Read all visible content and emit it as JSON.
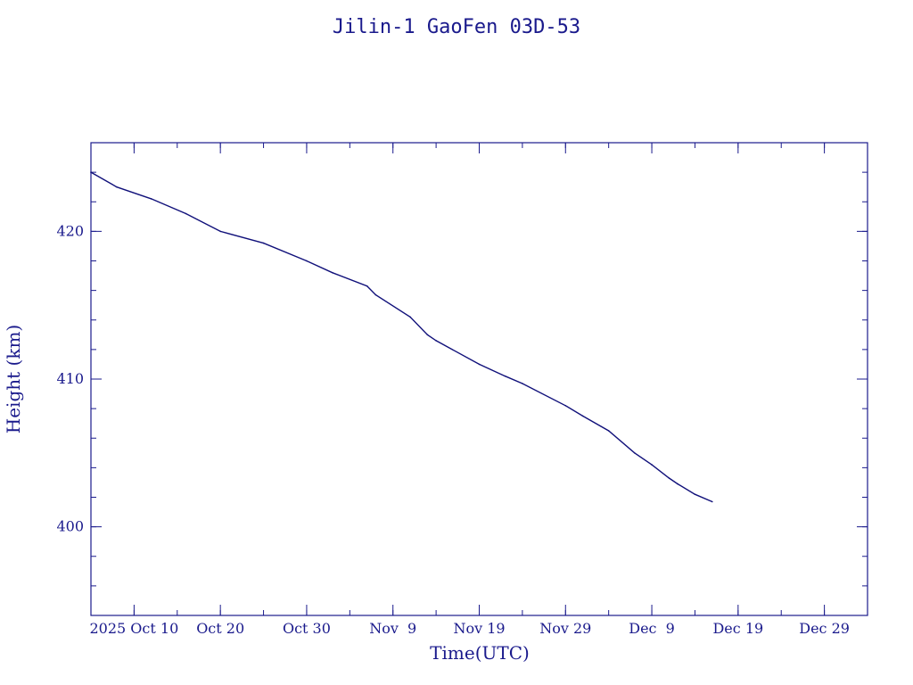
{
  "chart_data": {
    "type": "line",
    "title": "Jilin-1 GaoFen 03D-53",
    "xlabel": "Time(UTC)",
    "ylabel": "Height (km)",
    "xlim": [
      "2025-10-05",
      "2026-01-03"
    ],
    "ylim": [
      394,
      426
    ],
    "x_ticks": [
      {
        "date": "2025-10-10",
        "label": "2025 Oct 10"
      },
      {
        "date": "2025-10-20",
        "label": "Oct 20"
      },
      {
        "date": "2025-10-30",
        "label": "Oct 30"
      },
      {
        "date": "2025-11-09",
        "label": "Nov  9"
      },
      {
        "date": "2025-11-19",
        "label": "Nov 19"
      },
      {
        "date": "2025-11-29",
        "label": "Nov 29"
      },
      {
        "date": "2025-12-09",
        "label": "Dec  9"
      },
      {
        "date": "2025-12-19",
        "label": "Dec 19"
      },
      {
        "date": "2025-12-29",
        "label": "Dec 29"
      }
    ],
    "x_minor_tick_step_days": 5,
    "y_ticks": [
      400,
      410,
      420
    ],
    "y_minor_tick_step": 2,
    "grid": false,
    "series": [
      {
        "color": "#10107a",
        "points": [
          {
            "x": "2025-10-05",
            "y": 424.0
          },
          {
            "x": "2025-10-08",
            "y": 423.0
          },
          {
            "x": "2025-10-12",
            "y": 422.2
          },
          {
            "x": "2025-10-16",
            "y": 421.2
          },
          {
            "x": "2025-10-20",
            "y": 420.0
          },
          {
            "x": "2025-10-25",
            "y": 419.2
          },
          {
            "x": "2025-10-30",
            "y": 418.0
          },
          {
            "x": "2025-11-02",
            "y": 417.2
          },
          {
            "x": "2025-11-06",
            "y": 416.3
          },
          {
            "x": "2025-11-07",
            "y": 415.7
          },
          {
            "x": "2025-11-11",
            "y": 414.2
          },
          {
            "x": "2025-11-13",
            "y": 413.0
          },
          {
            "x": "2025-11-14",
            "y": 412.6
          },
          {
            "x": "2025-11-19",
            "y": 411.0
          },
          {
            "x": "2025-11-22",
            "y": 410.2
          },
          {
            "x": "2025-11-24",
            "y": 409.7
          },
          {
            "x": "2025-11-29",
            "y": 408.2
          },
          {
            "x": "2025-12-01",
            "y": 407.5
          },
          {
            "x": "2025-12-04",
            "y": 406.5
          },
          {
            "x": "2025-12-07",
            "y": 405.0
          },
          {
            "x": "2025-12-09",
            "y": 404.2
          },
          {
            "x": "2025-12-11",
            "y": 403.3
          },
          {
            "x": "2025-12-12",
            "y": 402.9
          },
          {
            "x": "2025-12-14",
            "y": 402.2
          },
          {
            "x": "2025-12-16",
            "y": 401.7
          }
        ]
      }
    ]
  }
}
